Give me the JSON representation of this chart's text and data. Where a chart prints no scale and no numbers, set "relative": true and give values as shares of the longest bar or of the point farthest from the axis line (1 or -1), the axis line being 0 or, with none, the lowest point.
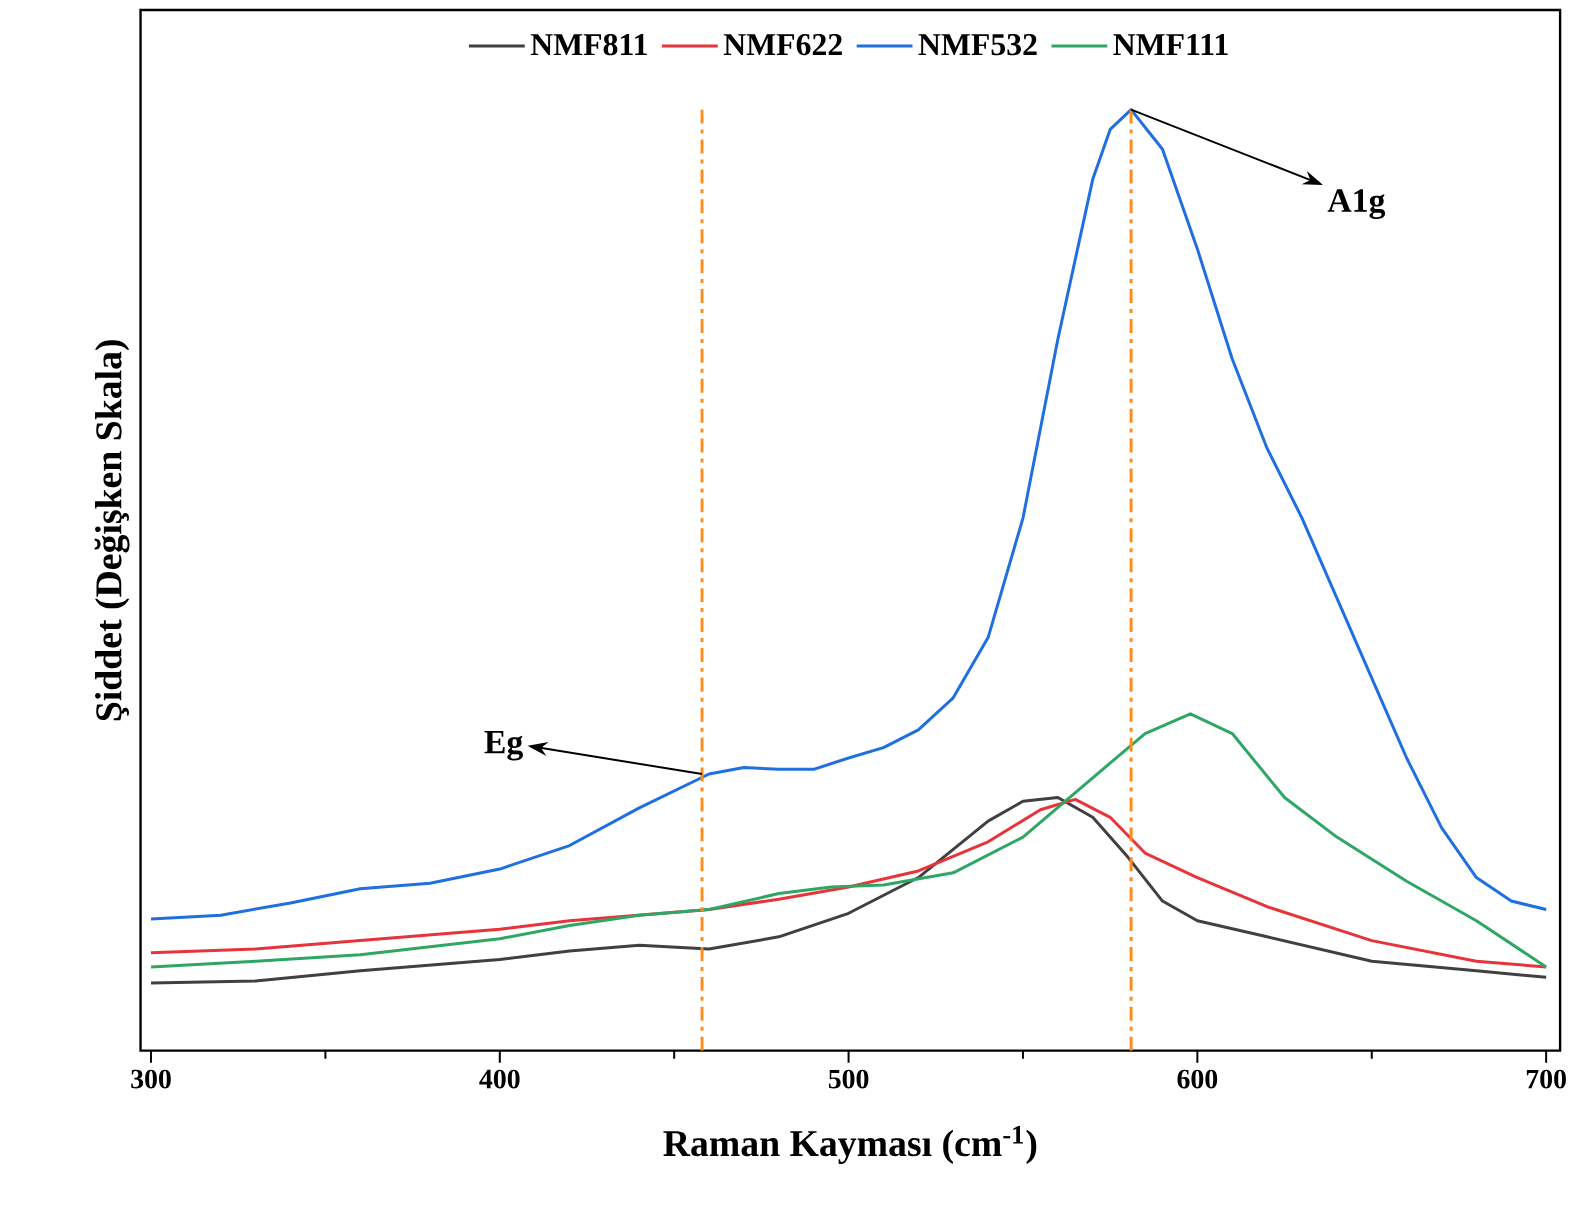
{
  "chart_data": {
    "type": "line",
    "relative": true,
    "xlabel": "Raman Kayması (cm$^{-1}$)",
    "ylabel": "Şiddet (Değişken Skala)",
    "xlim": [
      297,
      704
    ],
    "xticks": [
      300,
      400,
      500,
      600,
      700
    ],
    "legend": "top",
    "grid": false,
    "marker": "none",
    "line_style": "solid",
    "series": [
      {
        "name": "NMF811",
        "color": "#404040",
        "x": [
          300,
          330,
          360,
          400,
          420,
          440,
          460,
          480,
          500,
          520,
          540,
          550,
          560,
          570,
          580,
          590,
          600,
          620,
          650,
          680,
          700
        ],
        "values": [
          0.072,
          0.074,
          0.085,
          0.097,
          0.106,
          0.112,
          0.108,
          0.121,
          0.146,
          0.184,
          0.244,
          0.265,
          0.269,
          0.248,
          0.206,
          0.159,
          0.138,
          0.121,
          0.095,
          0.085,
          0.078
        ]
      },
      {
        "name": "NMF622",
        "color": "#e8333a",
        "x": [
          300,
          330,
          360,
          400,
          420,
          460,
          480,
          500,
          520,
          540,
          555,
          565,
          575,
          585,
          600,
          620,
          650,
          680,
          700
        ],
        "values": [
          0.104,
          0.108,
          0.117,
          0.129,
          0.138,
          0.15,
          0.161,
          0.174,
          0.191,
          0.222,
          0.256,
          0.267,
          0.248,
          0.21,
          0.184,
          0.153,
          0.117,
          0.095,
          0.089
        ]
      },
      {
        "name": "NMF532",
        "color": "#1f6fe0",
        "x": [
          300,
          320,
          340,
          360,
          380,
          400,
          420,
          440,
          460,
          470,
          480,
          490,
          500,
          510,
          520,
          530,
          540,
          550,
          560,
          570,
          575,
          581,
          590,
          600,
          610,
          620,
          630,
          640,
          650,
          660,
          670,
          680,
          690,
          700
        ],
        "values": [
          0.14,
          0.144,
          0.157,
          0.172,
          0.178,
          0.193,
          0.218,
          0.258,
          0.294,
          0.301,
          0.299,
          0.299,
          0.311,
          0.322,
          0.341,
          0.375,
          0.439,
          0.566,
          0.756,
          0.926,
          0.979,
          1.0,
          0.958,
          0.852,
          0.735,
          0.64,
          0.566,
          0.481,
          0.396,
          0.311,
          0.237,
          0.184,
          0.159,
          0.15
        ]
      },
      {
        "name": "NMF111",
        "color": "#2ea765",
        "x": [
          300,
          330,
          360,
          400,
          420,
          440,
          460,
          480,
          495,
          510,
          530,
          550,
          570,
          585,
          598,
          610,
          625,
          640,
          660,
          680,
          700
        ],
        "values": [
          0.089,
          0.095,
          0.102,
          0.119,
          0.133,
          0.144,
          0.15,
          0.167,
          0.174,
          0.176,
          0.189,
          0.227,
          0.29,
          0.337,
          0.358,
          0.337,
          0.269,
          0.227,
          0.18,
          0.138,
          0.089
        ]
      }
    ],
    "ref_lines": [
      {
        "axis": "x",
        "value": 458,
        "color": "#ff8c1a",
        "line_style": "dashdotted"
      },
      {
        "axis": "x",
        "value": 581,
        "color": "#ff8c1a",
        "line_style": "dashdotted"
      }
    ],
    "annotations": [
      {
        "text": "Eg",
        "x": 458,
        "y": 0.294
      },
      {
        "text": "A1g",
        "x": 581,
        "y": 1.0
      }
    ]
  }
}
